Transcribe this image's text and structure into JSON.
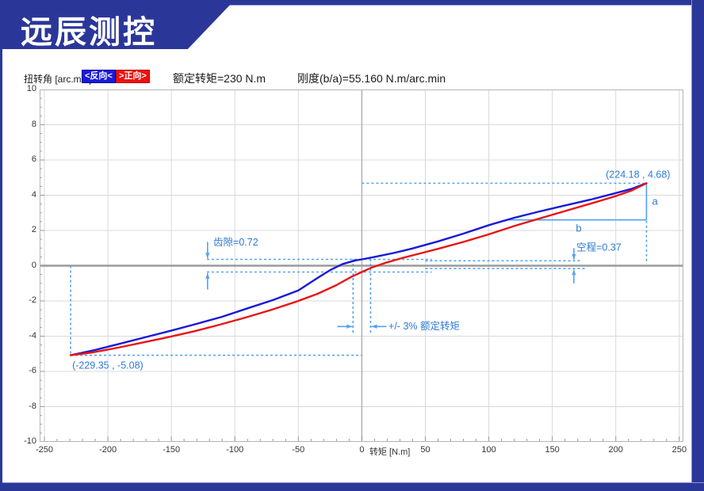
{
  "window": {
    "brand": "远辰测控",
    "border_color": "#2b3798"
  },
  "header": {
    "y_axis_title": "扭转角 [arc.min]",
    "legend": [
      {
        "label": "<反向<",
        "color": "#1a1ad8"
      },
      {
        "label": ">正向>",
        "color": "#ee1010"
      }
    ],
    "rated_torque_text": "额定转矩=230 N.m",
    "stiffness_text": "刚度(b/a)=55.160 N.m/arc.min"
  },
  "chart_data": {
    "type": "line",
    "title": "",
    "xlabel": "转矩 [N.m]",
    "ylabel": "扭转角 [arc.min]",
    "xlim": [
      -253.75,
      253.25
    ],
    "ylim": [
      -10,
      10
    ],
    "grid": true,
    "x_ticks": [
      -250,
      -200,
      -150,
      -100,
      -50,
      0,
      50,
      100,
      150,
      200,
      250
    ],
    "y_ticks": [
      10,
      8,
      6,
      4,
      2,
      0,
      -2,
      -4,
      -6,
      -8,
      -10
    ],
    "x_minor_step": 10,
    "y_minor_step": 0.5,
    "rated_torque_Nm": 230,
    "stiffness_Nm_per_arcmin": 55.16,
    "backlash_arcmin": 0.72,
    "lost_motion_arcmin": 0.37,
    "series": [
      {
        "name": "反向",
        "color": "#1818d8",
        "points": [
          [
            -229.35,
            -5.08
          ],
          [
            -210,
            -4.78
          ],
          [
            -190,
            -4.42
          ],
          [
            -170,
            -4.05
          ],
          [
            -150,
            -3.68
          ],
          [
            -130,
            -3.3
          ],
          [
            -110,
            -2.9
          ],
          [
            -90,
            -2.42
          ],
          [
            -70,
            -1.95
          ],
          [
            -50,
            -1.4
          ],
          [
            -35,
            -0.7
          ],
          [
            -25,
            -0.25
          ],
          [
            -15,
            0.1
          ],
          [
            -5,
            0.3
          ],
          [
            0,
            0.36
          ],
          [
            10,
            0.5
          ],
          [
            25,
            0.72
          ],
          [
            40,
            0.98
          ],
          [
            60,
            1.38
          ],
          [
            80,
            1.82
          ],
          [
            100,
            2.3
          ],
          [
            120,
            2.72
          ],
          [
            140,
            3.08
          ],
          [
            160,
            3.42
          ],
          [
            180,
            3.75
          ],
          [
            200,
            4.12
          ],
          [
            212,
            4.35
          ],
          [
            224.18,
            4.68
          ]
        ]
      },
      {
        "name": "正向",
        "color": "#e81414",
        "points": [
          [
            -229.35,
            -5.08
          ],
          [
            -212,
            -4.92
          ],
          [
            -192,
            -4.65
          ],
          [
            -172,
            -4.35
          ],
          [
            -152,
            -4.05
          ],
          [
            -132,
            -3.72
          ],
          [
            -112,
            -3.35
          ],
          [
            -92,
            -2.95
          ],
          [
            -72,
            -2.52
          ],
          [
            -52,
            -2.05
          ],
          [
            -35,
            -1.6
          ],
          [
            -20,
            -1.1
          ],
          [
            -8,
            -0.62
          ],
          [
            0,
            -0.36
          ],
          [
            8,
            -0.1
          ],
          [
            18,
            0.15
          ],
          [
            30,
            0.4
          ],
          [
            45,
            0.68
          ],
          [
            62,
            1.0
          ],
          [
            80,
            1.35
          ],
          [
            100,
            1.78
          ],
          [
            120,
            2.25
          ],
          [
            140,
            2.68
          ],
          [
            160,
            3.1
          ],
          [
            180,
            3.52
          ],
          [
            200,
            3.95
          ],
          [
            212,
            4.25
          ],
          [
            224.18,
            4.68
          ]
        ]
      }
    ],
    "annotations": {
      "accent": "#55a2f2",
      "text_color": "#2e7ad6",
      "left_endpoint": {
        "label": "(-229.35 , -5.08)",
        "t": -229.35,
        "v": -5.08
      },
      "right_endpoint": {
        "label": "(224.18 , 4.68)",
        "t": 224.18,
        "v": 4.68,
        "tail_v_top": 2.55,
        "tail_v_bottom": 0.12
      },
      "backlash": {
        "label": "齿隙=0.72",
        "upper_v": 0.36,
        "lower_v": -0.36,
        "t_start": -122,
        "t_end": 55,
        "arrow_t": -121.5,
        "label_t": -117,
        "label_v": 1.15
      },
      "lost_motion": {
        "label": "空程=0.37",
        "upper_v": 0.28,
        "lower_v": -0.16,
        "t_start": 50,
        "t_end_upper": 172,
        "t_end_lower": 176,
        "arrow_t": 167,
        "label_t": 169,
        "label_v": 0.85
      },
      "rated_band": {
        "label": "+/- 3% 额定转矩",
        "t_left": -6.9,
        "t_right": 6.9,
        "v_top": 0.38,
        "v_bottom": -3.85,
        "arrow_v": -3.45,
        "label_t": 21,
        "label_v": -3.62
      },
      "stiffness_triangle": {
        "a_label": "a",
        "b_label": "b",
        "t_right": 224.18,
        "t_left": 113,
        "v_top": 4.68,
        "v_base": 2.6,
        "color": "#4da0f0"
      }
    },
    "colors": {
      "grid": "#d9d9d9",
      "zero_y": "#9a9a9a",
      "zero_x": "#b0b0b0",
      "frame": "#b5b5b5",
      "tick": "#9a9a9a"
    }
  }
}
